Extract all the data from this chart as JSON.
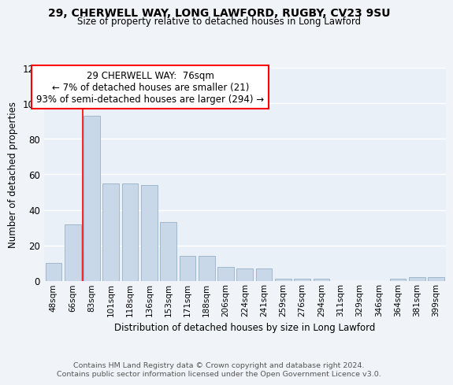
{
  "title1": "29, CHERWELL WAY, LONG LAWFORD, RUGBY, CV23 9SU",
  "title2": "Size of property relative to detached houses in Long Lawford",
  "xlabel": "Distribution of detached houses by size in Long Lawford",
  "ylabel": "Number of detached properties",
  "bar_labels": [
    "48sqm",
    "66sqm",
    "83sqm",
    "101sqm",
    "118sqm",
    "136sqm",
    "153sqm",
    "171sqm",
    "188sqm",
    "206sqm",
    "224sqm",
    "241sqm",
    "259sqm",
    "276sqm",
    "294sqm",
    "311sqm",
    "329sqm",
    "346sqm",
    "364sqm",
    "381sqm",
    "399sqm"
  ],
  "bar_values": [
    10,
    32,
    93,
    55,
    55,
    54,
    33,
    14,
    14,
    8,
    7,
    7,
    1,
    1,
    1,
    0,
    0,
    0,
    1,
    2,
    2
  ],
  "bar_color": "#c8d8e8",
  "bar_edgecolor": "#a0b8cc",
  "annotation_text": "29 CHERWELL WAY:  76sqm\n← 7% of detached houses are smaller (21)\n93% of semi-detached houses are larger (294) →",
  "annotation_box_color": "white",
  "annotation_box_edgecolor": "red",
  "vline_x_index": 1.52,
  "ylim": [
    0,
    120
  ],
  "yticks": [
    0,
    20,
    40,
    60,
    80,
    100,
    120
  ],
  "footer1": "Contains HM Land Registry data © Crown copyright and database right 2024.",
  "footer2": "Contains public sector information licensed under the Open Government Licence v3.0.",
  "bg_color": "#f0f4f8",
  "plot_bg_color": "#eaf0f8"
}
